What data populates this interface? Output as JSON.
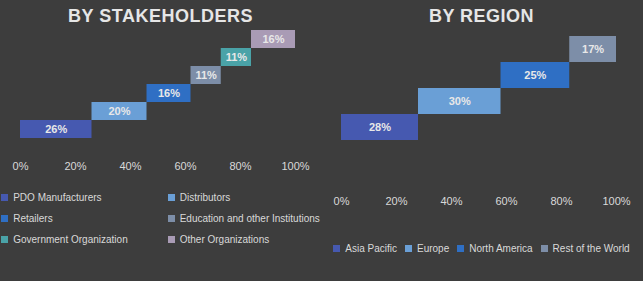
{
  "chart_data": [
    {
      "type": "bar",
      "title": "BY STAKEHOLDERS",
      "orientation": "horizontal",
      "stacked": true,
      "data_labels": true,
      "legend": "bottom",
      "xlim": [
        0,
        100
      ],
      "xticks": [
        {
          "value": 0,
          "label": "0%"
        },
        {
          "value": 20,
          "label": "20%"
        },
        {
          "value": 40,
          "label": "40%"
        },
        {
          "value": 60,
          "label": "60%"
        },
        {
          "value": 80,
          "label": "80%"
        },
        {
          "value": 100,
          "label": "100%"
        }
      ],
      "series": [
        {
          "name": "PDO Manufacturers",
          "color": "#4659b0",
          "values": [
            26
          ],
          "value_labels": [
            "26%"
          ]
        },
        {
          "name": "Distributors",
          "color": "#6a9fd6",
          "values": [
            20
          ],
          "value_labels": [
            "20%"
          ]
        },
        {
          "name": "Retailers",
          "color": "#2f6fc4",
          "values": [
            16
          ],
          "value_labels": [
            "16%"
          ]
        },
        {
          "name": "Education and other Institutions",
          "color": "#7d8ea8",
          "values": [
            11
          ],
          "value_labels": [
            "11%"
          ]
        },
        {
          "name": "Government Organization",
          "color": "#4aa3a8",
          "values": [
            11
          ],
          "value_labels": [
            "11%"
          ]
        },
        {
          "name": "Other Organizations",
          "color": "#a99bb5",
          "values": [
            16
          ],
          "value_labels": [
            "16%"
          ]
        }
      ]
    },
    {
      "type": "bar",
      "title": "BY REGION",
      "orientation": "horizontal",
      "stacked": true,
      "data_labels": true,
      "legend": "bottom",
      "xlim": [
        0,
        100
      ],
      "xticks": [
        {
          "value": 0,
          "label": "0%"
        },
        {
          "value": 20,
          "label": "20%"
        },
        {
          "value": 40,
          "label": "40%"
        },
        {
          "value": 60,
          "label": "60%"
        },
        {
          "value": 80,
          "label": "80%"
        },
        {
          "value": 100,
          "label": "100%"
        }
      ],
      "series": [
        {
          "name": "Asia Pacific",
          "color": "#4659b0",
          "values": [
            28
          ],
          "value_labels": [
            "28%"
          ]
        },
        {
          "name": "Europe",
          "color": "#6a9fd6",
          "values": [
            30
          ],
          "value_labels": [
            "30%"
          ]
        },
        {
          "name": "North America",
          "color": "#2f6fc4",
          "values": [
            25
          ],
          "value_labels": [
            "25%"
          ]
        },
        {
          "name": "Rest of the World",
          "color": "#7d8ea8",
          "values": [
            17
          ],
          "value_labels": [
            "17%"
          ]
        }
      ]
    }
  ]
}
